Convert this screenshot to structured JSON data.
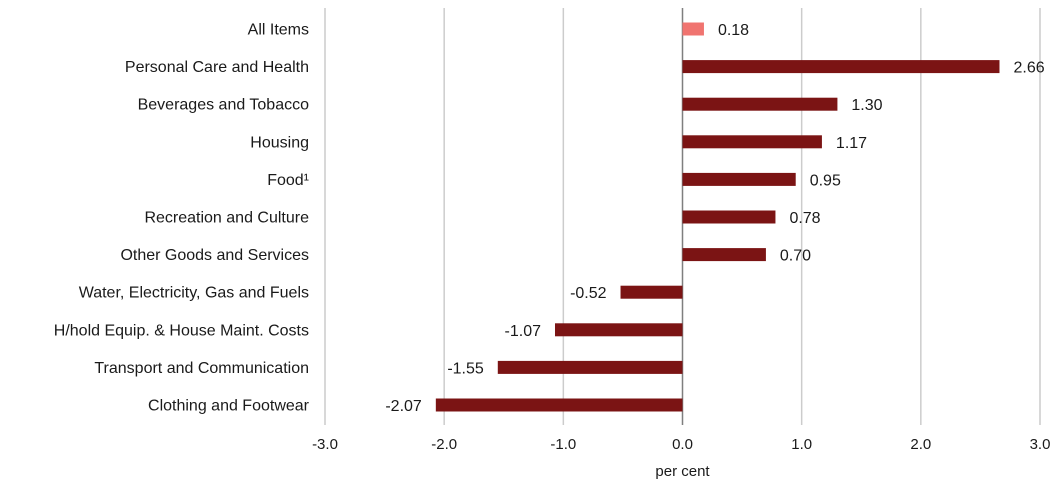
{
  "chart_data": {
    "type": "bar",
    "orientation": "horizontal",
    "title": "",
    "xlabel": "per cent",
    "ylabel": "",
    "xlim": [
      -3.0,
      3.0
    ],
    "ticks": [
      -3.0,
      -2.0,
      -1.0,
      0.0,
      1.0,
      2.0,
      3.0
    ],
    "tick_labels": [
      "-3.0",
      "-2.0",
      "-1.0",
      "0.0",
      "1.0",
      "2.0",
      "3.0"
    ],
    "grid": "vertical",
    "categories": [
      "All Items",
      "Personal Care and Health",
      "Beverages and Tobacco",
      "Housing",
      "Food¹",
      "Recreation and Culture",
      "Other Goods and Services",
      "Water, Electricity, Gas and Fuels",
      "H/hold Equip. & House Maint. Costs",
      "Transport and Communication",
      "Clothing and Footwear"
    ],
    "values": [
      0.18,
      2.66,
      1.3,
      1.17,
      0.95,
      0.78,
      0.7,
      -0.52,
      -1.07,
      -1.55,
      -2.07
    ],
    "value_labels": [
      "0.18",
      "2.66",
      "1.30",
      "1.17",
      "0.95",
      "0.78",
      "0.70",
      "-0.52",
      "-1.07",
      "-1.55",
      "-2.07"
    ],
    "colors": {
      "highlight": "#f07470",
      "bar": "#7b1414"
    },
    "highlight_index": 0
  }
}
